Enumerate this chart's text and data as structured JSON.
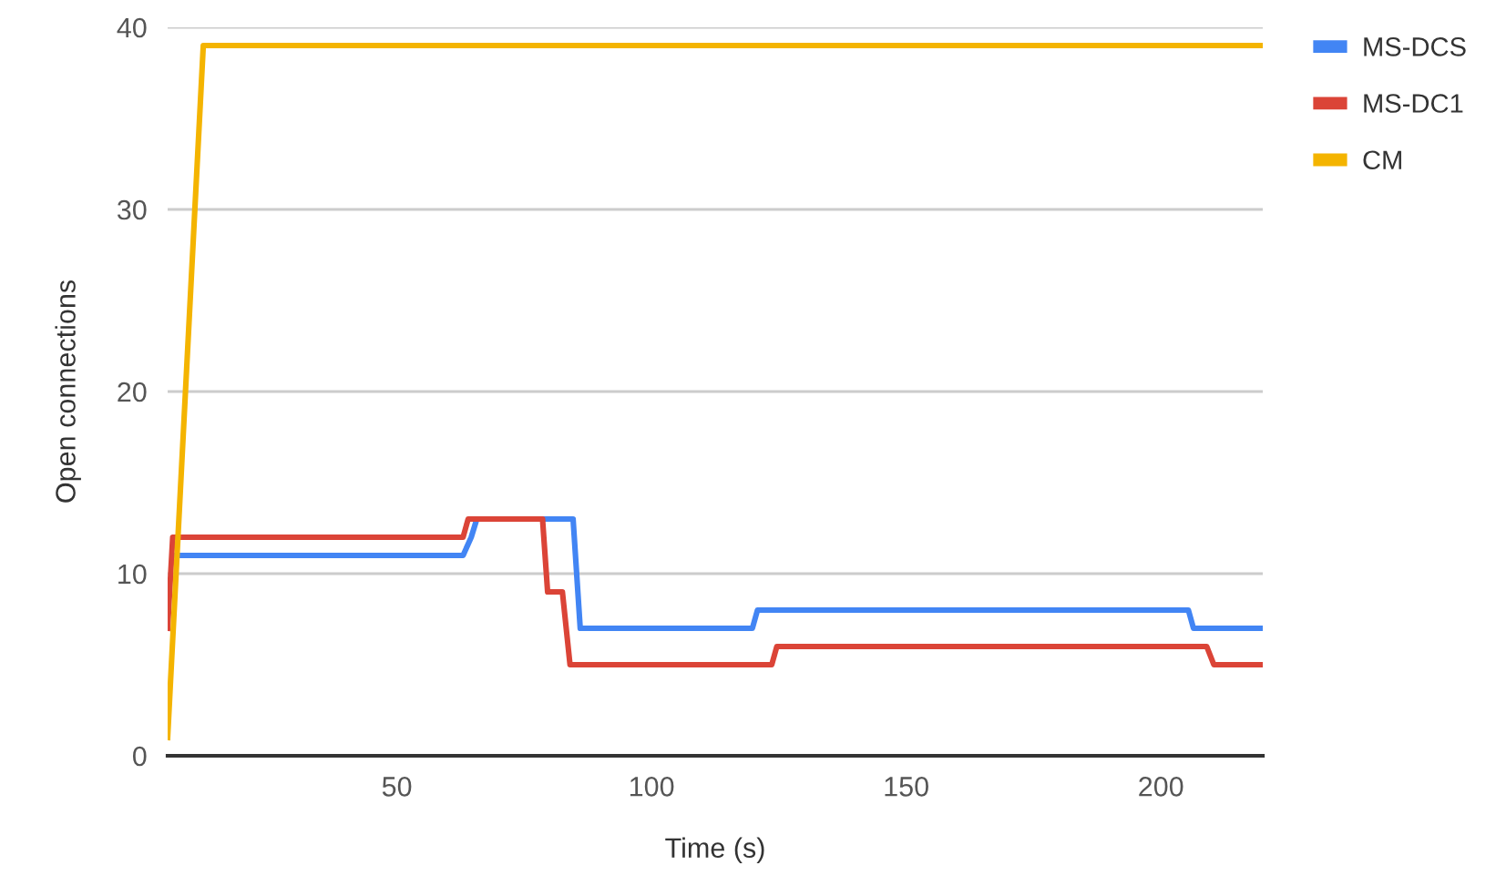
{
  "chart_data": {
    "type": "line",
    "xlabel": "Time (s)",
    "ylabel": "Open connections",
    "xlim": [
      5,
      220
    ],
    "xticks": [
      50,
      100,
      150,
      200
    ],
    "ylim": [
      0,
      40
    ],
    "yticks": [
      0,
      10,
      20,
      30,
      40
    ],
    "grid": "y",
    "legend": "top right",
    "line_style": "solid",
    "series": [
      {
        "name": "MS-DCS",
        "color": "#4285f4",
        "x": [
          6,
          63,
          64.6,
          65.7,
          84.6,
          86,
          119.8,
          120.8,
          205.4,
          206.4,
          220
        ],
        "values": [
          11,
          11,
          12,
          13,
          13,
          7,
          7,
          8,
          8,
          7,
          7
        ]
      },
      {
        "name": "MS-DC1",
        "color": "#db4437",
        "x": [
          5,
          6,
          63,
          64,
          78.6,
          79.6,
          82.5,
          84,
          123.6,
          124.6,
          209,
          210.4,
          220
        ],
        "values": [
          7,
          12,
          12,
          13,
          13,
          9,
          9,
          5,
          5,
          6,
          6,
          5,
          5
        ]
      },
      {
        "name": "CM",
        "color": "#f4b400",
        "x": [
          5,
          12,
          220
        ],
        "values": [
          1,
          39,
          39
        ]
      }
    ]
  }
}
